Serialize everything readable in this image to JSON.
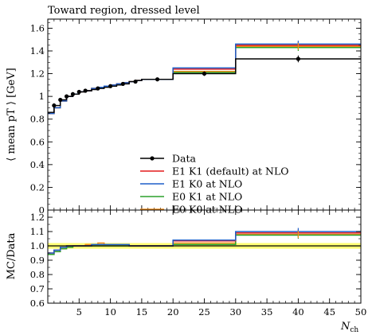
{
  "chart_data": [
    {
      "type": "line",
      "step": true,
      "title": "Toward region, dressed level",
      "ylabel": "⟨ mean pT ⟩ [GeV]",
      "xlabel": "",
      "xlim": [
        0,
        50
      ],
      "ylim": [
        0,
        1.68
      ],
      "yticks": [
        0,
        0.2,
        0.4,
        0.6,
        0.8,
        1,
        1.2,
        1.4,
        1.6
      ],
      "ytick_labels": [
        "0",
        "0.2",
        "0.4",
        "0.6",
        "0.8",
        "1",
        "1.2",
        "1.4",
        "1.6"
      ],
      "grid": false,
      "legend_position": "bottom-center",
      "bin_edges": [
        0,
        1,
        2,
        3,
        4,
        5,
        6,
        7,
        8,
        9,
        10,
        11,
        12,
        13,
        14,
        15,
        20,
        30,
        50
      ],
      "data_points": {
        "name": "Data",
        "color": "#000000",
        "x": [
          1,
          2,
          3,
          4,
          5,
          6,
          8,
          10,
          12,
          14,
          17.5,
          25,
          40
        ],
        "y": [
          0.92,
          0.97,
          1.0,
          1.02,
          1.04,
          1.05,
          1.07,
          1.09,
          1.11,
          1.13,
          1.15,
          1.2,
          1.33
        ],
        "yerr": [
          0.02,
          0.01,
          0.01,
          0.01,
          0.01,
          0.01,
          0.01,
          0.01,
          0.01,
          0.01,
          0.01,
          0.02,
          0.03
        ]
      },
      "series": [
        {
          "name": "Data",
          "color": "#000000",
          "values": [
            0.86,
            0.92,
            0.97,
            1.0,
            1.02,
            1.04,
            1.05,
            1.06,
            1.07,
            1.08,
            1.09,
            1.1,
            1.11,
            1.13,
            1.14,
            1.15,
            1.2,
            1.33
          ]
        },
        {
          "name": "E1 K1 (default) at NLO",
          "color": "#e31a1c",
          "values": [
            0.85,
            0.9,
            0.96,
            1.0,
            1.02,
            1.04,
            1.05,
            1.07,
            1.08,
            1.09,
            1.1,
            1.11,
            1.12,
            1.13,
            1.14,
            1.15,
            1.24,
            1.45
          ]
        },
        {
          "name": "E1 K0 at NLO",
          "color": "#1f5fc8",
          "values": [
            0.85,
            0.9,
            0.96,
            1.0,
            1.02,
            1.04,
            1.05,
            1.07,
            1.08,
            1.09,
            1.1,
            1.11,
            1.12,
            1.13,
            1.14,
            1.15,
            1.25,
            1.46
          ]
        },
        {
          "name": "E0 K1 at NLO",
          "color": "#2ca02c",
          "values": [
            0.85,
            0.9,
            0.96,
            1.0,
            1.02,
            1.04,
            1.05,
            1.07,
            1.08,
            1.09,
            1.1,
            1.11,
            1.12,
            1.13,
            1.14,
            1.15,
            1.21,
            1.43
          ]
        },
        {
          "name": "E0 K0 at NLO",
          "color": "#f28e1c",
          "values": [
            0.85,
            0.9,
            0.96,
            1.0,
            1.02,
            1.04,
            1.05,
            1.07,
            1.08,
            1.09,
            1.1,
            1.11,
            1.12,
            1.13,
            1.14,
            1.15,
            1.22,
            1.44
          ]
        }
      ],
      "legend": [
        {
          "label": "Data",
          "color": "#000000"
        },
        {
          "label": "E1 K1 (default) at NLO",
          "color": "#e31a1c"
        },
        {
          "label": "E1 K0 at NLO",
          "color": "#1f5fc8"
        },
        {
          "label": "E0 K1 at NLO",
          "color": "#2ca02c"
        },
        {
          "label": "E0 K0 at NLO",
          "color": "#f28e1c"
        }
      ]
    },
    {
      "type": "line",
      "step": true,
      "title": "",
      "ylabel": "MC/Data",
      "xlabel": "N_ch",
      "xlim": [
        0,
        50
      ],
      "ylim": [
        0.6,
        1.25
      ],
      "yticks": [
        0.6,
        0.7,
        0.8,
        0.9,
        1.0,
        1.1,
        1.2
      ],
      "ytick_labels": [
        "0.6",
        "0.7",
        "0.8",
        "0.9",
        "1.0",
        "1.1",
        "1.2"
      ],
      "xticks": [
        5,
        10,
        15,
        20,
        25,
        30,
        35,
        40,
        45,
        50
      ],
      "xtick_labels": [
        "5",
        "10",
        "15",
        "20",
        "25",
        "30",
        "35",
        "40",
        "45",
        "50"
      ],
      "grid": false,
      "band": {
        "low": 0.98,
        "high": 1.02,
        "color": "#ffff66"
      },
      "bin_edges": [
        0,
        1,
        2,
        3,
        4,
        5,
        6,
        7,
        8,
        9,
        10,
        11,
        12,
        13,
        14,
        15,
        20,
        30,
        50
      ],
      "series": [
        {
          "name": "Data",
          "color": "#000000",
          "values": [
            1,
            1,
            1,
            1,
            1,
            1,
            1,
            1,
            1,
            1,
            1,
            1,
            1,
            1,
            1,
            1,
            1,
            1
          ]
        },
        {
          "name": "E1 K1 (default) at NLO",
          "color": "#e31a1c",
          "values": [
            0.95,
            0.97,
            0.99,
            1.0,
            1.0,
            1.0,
            1.0,
            1.01,
            1.01,
            1.01,
            1.01,
            1.01,
            1.01,
            1.0,
            1.0,
            1.0,
            1.035,
            1.09
          ]
        },
        {
          "name": "E1 K0 at NLO",
          "color": "#1f5fc8",
          "values": [
            0.95,
            0.97,
            0.99,
            1.0,
            1.0,
            1.0,
            1.0,
            1.01,
            1.01,
            1.01,
            1.01,
            1.01,
            1.01,
            1.0,
            1.0,
            1.0,
            1.04,
            1.1
          ]
        },
        {
          "name": "E0 K1 at NLO",
          "color": "#2ca02c",
          "values": [
            0.94,
            0.96,
            0.98,
            0.99,
            1.0,
            1.0,
            1.0,
            1.0,
            1.0,
            1.0,
            1.0,
            1.0,
            1.0,
            1.0,
            1.0,
            1.0,
            1.01,
            1.075
          ]
        },
        {
          "name": "E0 K0 at NLO",
          "color": "#f28e1c",
          "values": [
            0.94,
            0.96,
            0.98,
            0.99,
            1.0,
            1.0,
            1.01,
            1.01,
            1.02,
            1.01,
            1.01,
            1.01,
            1.01,
            1.0,
            1.0,
            1.0,
            1.02,
            1.08
          ]
        }
      ]
    }
  ]
}
